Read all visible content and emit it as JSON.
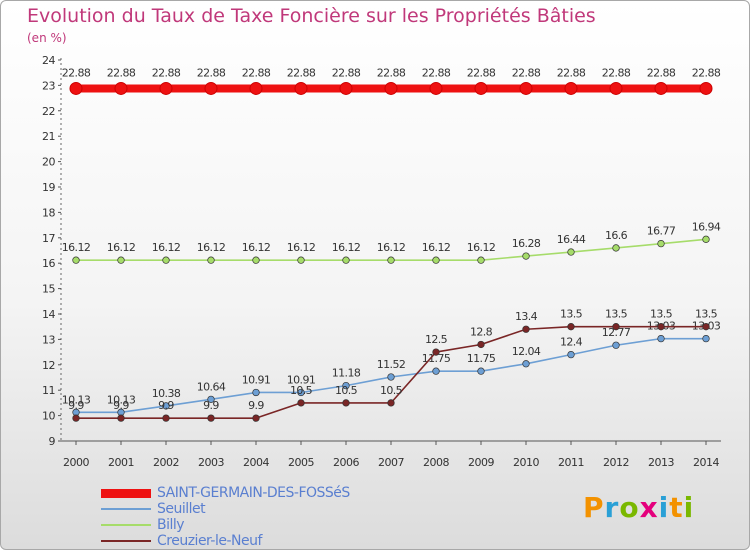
{
  "title": "Evolution du Taux de Taxe Foncière sur les Propriétés Bâties",
  "unit_label": "(en %)",
  "logo": {
    "text": "Proxiti",
    "colors": [
      "#f39200",
      "#2aa0d6",
      "#7ab800",
      "#e4007c",
      "#2aa0d6",
      "#f39200",
      "#7ab800"
    ]
  },
  "chart_data": {
    "type": "line",
    "title": "Evolution du Taux de Taxe Foncière sur les Propriétés Bâties",
    "ylabel": "(en %)",
    "xlabel": "",
    "ylim": [
      9,
      24
    ],
    "yticks": [
      9,
      10,
      11,
      12,
      13,
      14,
      15,
      16,
      17,
      18,
      19,
      20,
      21,
      22,
      23,
      24
    ],
    "grid": false,
    "legend_position": "bottom-left",
    "categories": [
      "2000",
      "2001",
      "2002",
      "2003",
      "2004",
      "2005",
      "2006",
      "2007",
      "2008",
      "2009",
      "2010",
      "2011",
      "2012",
      "2013",
      "2014"
    ],
    "series": [
      {
        "name": "SAINT-GERMAIN-DES-FOSSéS",
        "color": "#ee1111",
        "values": [
          22.88,
          22.88,
          22.88,
          22.88,
          22.88,
          22.88,
          22.88,
          22.88,
          22.88,
          22.88,
          22.88,
          22.88,
          22.88,
          22.88,
          22.88
        ],
        "labels": [
          "22.88",
          "22.88",
          "22.88",
          "22.88",
          "22.88",
          "22.88",
          "22.88",
          "22.88",
          "22.88",
          "22.88",
          "22.88",
          "22.88",
          "22.88",
          "22.88",
          "22.88"
        ]
      },
      {
        "name": "Seuillet",
        "color": "#6d9fd4",
        "values": [
          10.13,
          10.13,
          10.38,
          10.64,
          10.91,
          10.91,
          11.18,
          11.52,
          11.75,
          11.75,
          12.04,
          12.4,
          12.77,
          13.03,
          13.03
        ],
        "labels": [
          "10.13",
          "10.13",
          "10.38",
          "10.64",
          "10.91",
          "10.91",
          "11.18",
          "11.52",
          "11.75",
          "11.75",
          "12.04",
          "12.4",
          "12.77",
          "13.03",
          "13.03"
        ]
      },
      {
        "name": "Billy",
        "color": "#a6dc6a",
        "values": [
          16.12,
          16.12,
          16.12,
          16.12,
          16.12,
          16.12,
          16.12,
          16.12,
          16.12,
          16.12,
          16.28,
          16.44,
          16.6,
          16.77,
          16.94
        ],
        "labels": [
          "16.12",
          "16.12",
          "16.12",
          "16.12",
          "16.12",
          "16.12",
          "16.12",
          "16.12",
          "16.12",
          "16.12",
          "16.28",
          "16.44",
          "16.6",
          "16.77",
          "16.94"
        ]
      },
      {
        "name": "Creuzier-le-Neuf",
        "color": "#7a2626",
        "values": [
          9.9,
          9.9,
          9.9,
          9.9,
          9.9,
          10.5,
          10.5,
          10.5,
          12.5,
          12.8,
          13.4,
          13.5,
          13.5,
          13.5,
          13.5
        ],
        "labels": [
          "9.9",
          "9.9",
          "9.9",
          "9.9",
          "9.9",
          "10.5",
          "10.5",
          "10.5",
          "12.5",
          "12.8",
          "13.4",
          "13.5",
          "13.5",
          "13.5",
          "13.5"
        ]
      }
    ]
  }
}
